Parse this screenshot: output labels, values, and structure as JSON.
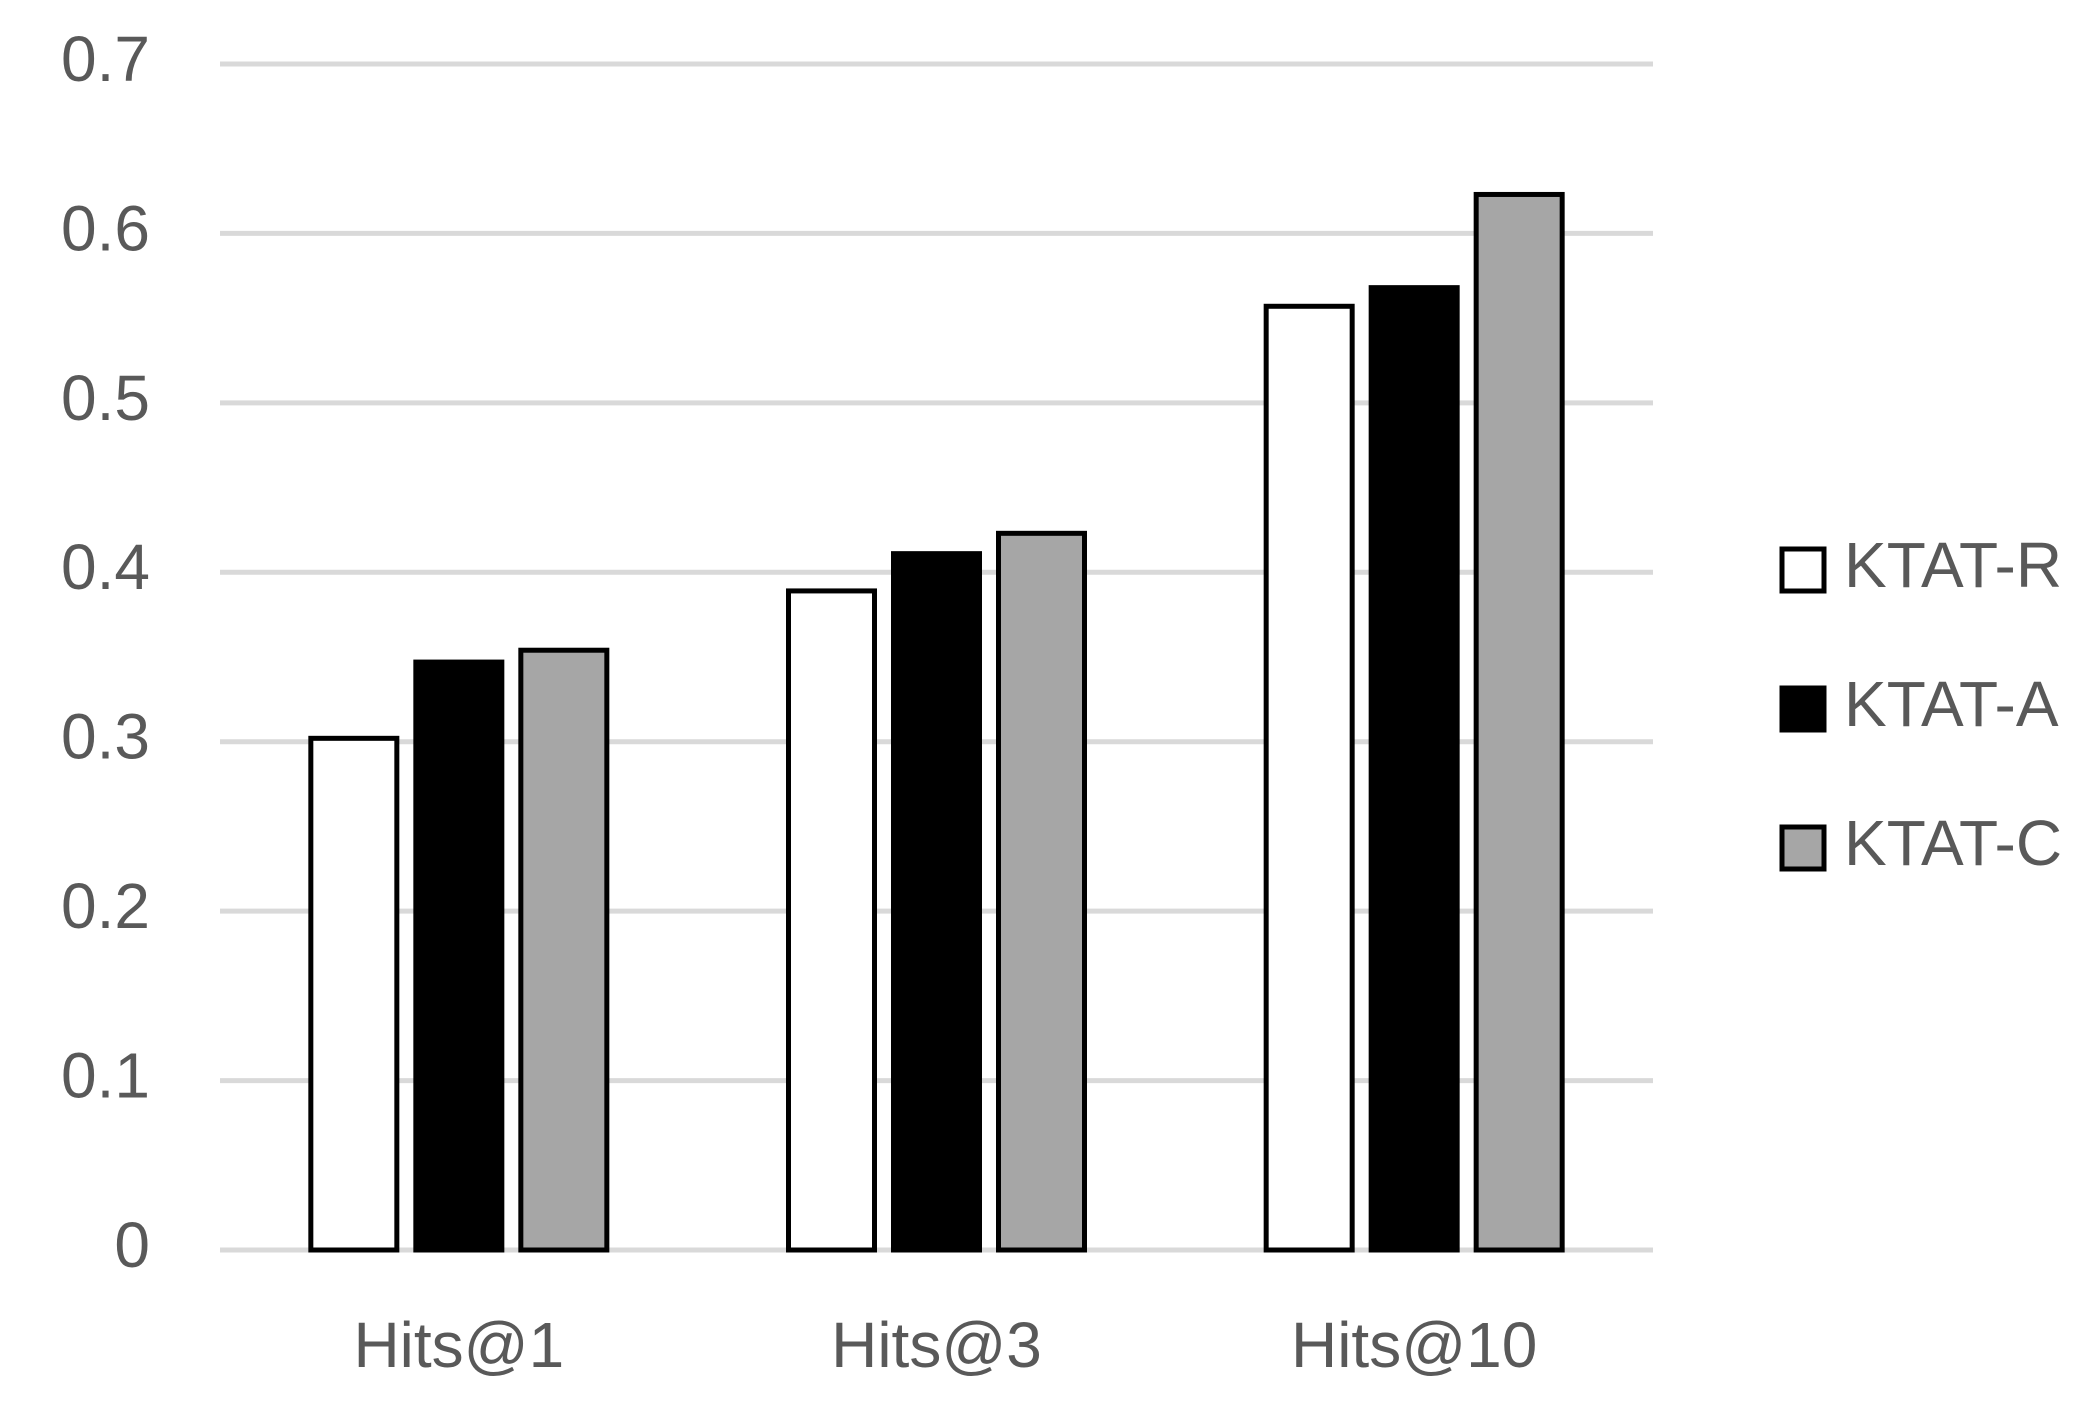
{
  "chart_data": {
    "type": "bar",
    "categories": [
      "Hits@1",
      "Hits@3",
      "Hits@10"
    ],
    "series": [
      {
        "name": "KTAT-R",
        "color": "#ffffff",
        "values": [
          0.302,
          0.389,
          0.557
        ]
      },
      {
        "name": "KTAT-A",
        "color": "#000000",
        "values": [
          0.347,
          0.411,
          0.568
        ]
      },
      {
        "name": "KTAT-C",
        "color": "#a6a6a6",
        "values": [
          0.354,
          0.423,
          0.623
        ]
      }
    ],
    "ylim": [
      0,
      0.7
    ],
    "yticks": [
      0,
      0.1,
      0.2,
      0.3,
      0.4,
      0.5,
      0.6,
      0.7
    ],
    "grid": true,
    "legend": "right"
  }
}
